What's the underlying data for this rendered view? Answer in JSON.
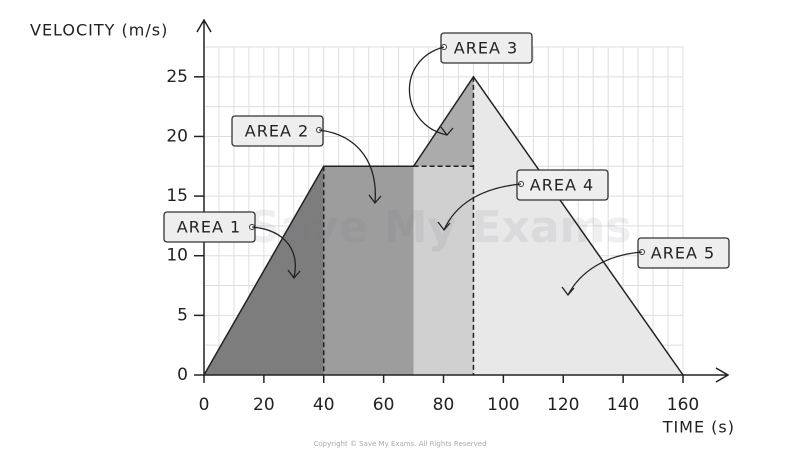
{
  "chart_data": {
    "type": "line",
    "y_label": "VELOCITY (m/s)",
    "x_label": "TIME (s)",
    "x": [
      0,
      40,
      70,
      90,
      160
    ],
    "values": [
      0,
      17.5,
      17.5,
      25,
      0
    ],
    "color": "#222222",
    "xlim": [
      0,
      160
    ],
    "xticks": [
      0,
      20,
      40,
      60,
      80,
      100,
      120,
      140,
      160
    ],
    "ylim": [
      0,
      27.5
    ],
    "yticks": [
      0,
      5,
      10,
      15,
      20,
      25
    ],
    "grid": true,
    "areas": [
      {
        "label": "AREA 1",
        "color": "#7d7d7d"
      },
      {
        "label": "AREA 2",
        "color": "#9d9d9d"
      },
      {
        "label": "AREA 3",
        "color": "#ababab"
      },
      {
        "label": "AREA 4",
        "color": "#d0d0d0"
      },
      {
        "label": "AREA 5",
        "color": "#e8e8e8"
      }
    ],
    "watermark": "Save My Exams",
    "copyright": "Copyright © Save My Exams. All Rights Reserved"
  }
}
